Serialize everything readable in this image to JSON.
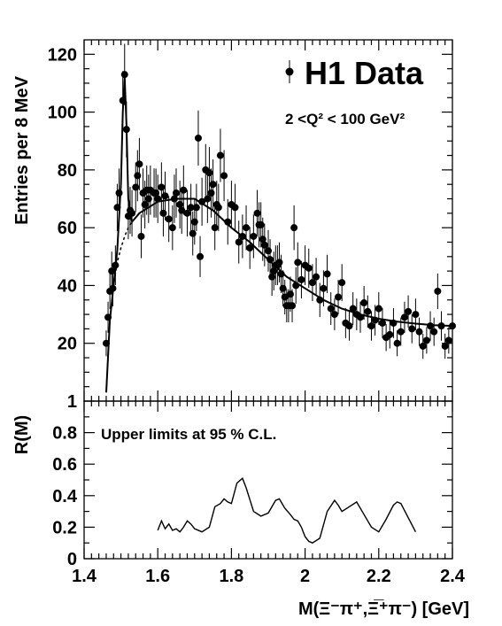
{
  "chart_data": [
    {
      "type": "scatter",
      "panel": "top",
      "legend": "H1 Data",
      "subtitle": "2 <Q² < 100 GeV²",
      "ylabel": "Entries per 8 MeV",
      "xlim": [
        1.4,
        2.4
      ],
      "ylim": [
        0,
        125
      ],
      "yticks": [
        20,
        40,
        60,
        80,
        100,
        120
      ],
      "legend_position": "top-right",
      "series": [
        {
          "points": [
            [
              1.46,
              20
            ],
            [
              1.465,
              29
            ],
            [
              1.47,
              38
            ],
            [
              1.475,
              45
            ],
            [
              1.478,
              39
            ],
            [
              1.485,
              47
            ],
            [
              1.49,
              67
            ],
            [
              1.495,
              72
            ],
            [
              1.505,
              104
            ],
            [
              1.51,
              113
            ],
            [
              1.515,
              94
            ],
            [
              1.52,
              64
            ],
            [
              1.525,
              66
            ],
            [
              1.53,
              65
            ],
            [
              1.54,
              74
            ],
            [
              1.545,
              78
            ],
            [
              1.55,
              82
            ],
            [
              1.555,
              57
            ],
            [
              1.56,
              72
            ],
            [
              1.565,
              68
            ],
            [
              1.57,
              73
            ],
            [
              1.575,
              70
            ],
            [
              1.58,
              73
            ],
            [
              1.59,
              72
            ],
            [
              1.595,
              72
            ],
            [
              1.6,
              70
            ],
            [
              1.61,
              74
            ],
            [
              1.615,
              65
            ],
            [
              1.62,
              71
            ],
            [
              1.63,
              63
            ],
            [
              1.64,
              60
            ],
            [
              1.645,
              70
            ],
            [
              1.65,
              72
            ],
            [
              1.66,
              68
            ],
            [
              1.665,
              66
            ],
            [
              1.67,
              73
            ],
            [
              1.68,
              65
            ],
            [
              1.69,
              67
            ],
            [
              1.695,
              58
            ],
            [
              1.7,
              62
            ],
            [
              1.705,
              67
            ],
            [
              1.71,
              91
            ],
            [
              1.715,
              50
            ],
            [
              1.72,
              69
            ],
            [
              1.73,
              80
            ],
            [
              1.735,
              70
            ],
            [
              1.74,
              79
            ],
            [
              1.745,
              72
            ],
            [
              1.75,
              75
            ],
            [
              1.755,
              60
            ],
            [
              1.76,
              68
            ],
            [
              1.765,
              67
            ],
            [
              1.77,
              85
            ],
            [
              1.78,
              78
            ],
            [
              1.79,
              62
            ],
            [
              1.8,
              68
            ],
            [
              1.81,
              67
            ],
            [
              1.82,
              55
            ],
            [
              1.83,
              57
            ],
            [
              1.84,
              60
            ],
            [
              1.85,
              53
            ],
            [
              1.86,
              57
            ],
            [
              1.87,
              65
            ],
            [
              1.875,
              61
            ],
            [
              1.88,
              61
            ],
            [
              1.885,
              56
            ],
            [
              1.89,
              54
            ],
            [
              1.9,
              52
            ],
            [
              1.905,
              49
            ],
            [
              1.91,
              43
            ],
            [
              1.915,
              45
            ],
            [
              1.92,
              47
            ],
            [
              1.925,
              47
            ],
            [
              1.93,
              48
            ],
            [
              1.935,
              44
            ],
            [
              1.94,
              39
            ],
            [
              1.945,
              36
            ],
            [
              1.95,
              33
            ],
            [
              1.955,
              33
            ],
            [
              1.96,
              37
            ],
            [
              1.965,
              33
            ],
            [
              1.97,
              60
            ],
            [
              1.975,
              40
            ],
            [
              1.98,
              48
            ],
            [
              1.99,
              42
            ],
            [
              2.0,
              47
            ],
            [
              2.01,
              46
            ],
            [
              2.02,
              41
            ],
            [
              2.03,
              43
            ],
            [
              2.04,
              35
            ],
            [
              2.05,
              39
            ],
            [
              2.06,
              44
            ],
            [
              2.07,
              32
            ],
            [
              2.08,
              30
            ],
            [
              2.09,
              36
            ],
            [
              2.1,
              41
            ],
            [
              2.11,
              27
            ],
            [
              2.12,
              26
            ],
            [
              2.13,
              32
            ],
            [
              2.14,
              30
            ],
            [
              2.15,
              29
            ],
            [
              2.16,
              34
            ],
            [
              2.17,
              31
            ],
            [
              2.18,
              26
            ],
            [
              2.19,
              28
            ],
            [
              2.2,
              32
            ],
            [
              2.21,
              27
            ],
            [
              2.22,
              22
            ],
            [
              2.23,
              23
            ],
            [
              2.24,
              27
            ],
            [
              2.25,
              20
            ],
            [
              2.26,
              24
            ],
            [
              2.27,
              29
            ],
            [
              2.28,
              31
            ],
            [
              2.29,
              25
            ],
            [
              2.3,
              30
            ],
            [
              2.31,
              24
            ],
            [
              2.32,
              19
            ],
            [
              2.33,
              21
            ],
            [
              2.34,
              26
            ],
            [
              2.35,
              24
            ],
            [
              2.36,
              38
            ],
            [
              2.37,
              26
            ],
            [
              2.38,
              19
            ],
            [
              2.39,
              21
            ],
            [
              2.4,
              26
            ]
          ]
        }
      ],
      "fit_curve": [
        [
          1.46,
          3
        ],
        [
          1.47,
          28
        ],
        [
          1.48,
          40
        ],
        [
          1.49,
          52
        ],
        [
          1.5,
          75
        ],
        [
          1.505,
          100
        ],
        [
          1.51,
          112
        ],
        [
          1.515,
          96
        ],
        [
          1.52,
          70
        ],
        [
          1.53,
          62
        ],
        [
          1.55,
          65
        ],
        [
          1.6,
          69
        ],
        [
          1.65,
          70
        ],
        [
          1.7,
          70
        ],
        [
          1.75,
          66
        ],
        [
          1.8,
          60
        ],
        [
          1.85,
          55
        ],
        [
          1.9,
          49
        ],
        [
          1.95,
          43
        ],
        [
          2.0,
          39
        ],
        [
          2.05,
          35
        ],
        [
          2.1,
          32
        ],
        [
          2.15,
          30
        ],
        [
          2.2,
          28.5
        ],
        [
          2.25,
          27.5
        ],
        [
          2.3,
          26.8
        ],
        [
          2.35,
          26.3
        ],
        [
          2.4,
          26
        ]
      ],
      "background_curve": [
        [
          1.46,
          3
        ],
        [
          1.47,
          28
        ],
        [
          1.48,
          40
        ],
        [
          1.49,
          48
        ],
        [
          1.5,
          53
        ],
        [
          1.51,
          57
        ],
        [
          1.52,
          60
        ],
        [
          1.53,
          62
        ]
      ]
    },
    {
      "type": "line",
      "panel": "bottom",
      "ylabel": "R(M)",
      "xlabel": "M(Ξ⁻π⁺,Ξ̅⁺π⁻) [GeV]",
      "annotation": "Upper limits at 95 % C.L.",
      "xlim": [
        1.4,
        2.4
      ],
      "ylim": [
        0,
        1
      ],
      "yticks": [
        0,
        0.2,
        0.4,
        0.6,
        0.8,
        1
      ],
      "ytick_labels": [
        "0",
        "0.2",
        "0.4",
        "0.6",
        "0.8",
        "1"
      ],
      "xticks": [
        1.4,
        1.6,
        1.8,
        2,
        2.2,
        2.4
      ],
      "xtick_labels": [
        "1.4",
        "1.6",
        "1.8",
        "2",
        "2.2",
        "2.4"
      ],
      "series": [
        {
          "points": [
            [
              1.6,
              0.18
            ],
            [
              1.61,
              0.24
            ],
            [
              1.62,
              0.19
            ],
            [
              1.63,
              0.22
            ],
            [
              1.64,
              0.18
            ],
            [
              1.65,
              0.19
            ],
            [
              1.66,
              0.17
            ],
            [
              1.67,
              0.2
            ],
            [
              1.68,
              0.24
            ],
            [
              1.69,
              0.22
            ],
            [
              1.7,
              0.19
            ],
            [
              1.72,
              0.17
            ],
            [
              1.74,
              0.2
            ],
            [
              1.755,
              0.33
            ],
            [
              1.77,
              0.35
            ],
            [
              1.78,
              0.38
            ],
            [
              1.79,
              0.36
            ],
            [
              1.8,
              0.35
            ],
            [
              1.815,
              0.48
            ],
            [
              1.83,
              0.51
            ],
            [
              1.84,
              0.45
            ],
            [
              1.86,
              0.3
            ],
            [
              1.88,
              0.27
            ],
            [
              1.9,
              0.29
            ],
            [
              1.92,
              0.37
            ],
            [
              1.93,
              0.38
            ],
            [
              1.945,
              0.32
            ],
            [
              1.96,
              0.28
            ],
            [
              1.97,
              0.25
            ],
            [
              1.98,
              0.24
            ],
            [
              1.99,
              0.2
            ],
            [
              2.0,
              0.14
            ],
            [
              2.01,
              0.11
            ],
            [
              2.02,
              0.1
            ],
            [
              2.04,
              0.13
            ],
            [
              2.06,
              0.3
            ],
            [
              2.08,
              0.37
            ],
            [
              2.09,
              0.34
            ],
            [
              2.1,
              0.3
            ],
            [
              2.12,
              0.33
            ],
            [
              2.14,
              0.36
            ],
            [
              2.16,
              0.28
            ],
            [
              2.18,
              0.2
            ],
            [
              2.2,
              0.17
            ],
            [
              2.22,
              0.25
            ],
            [
              2.24,
              0.34
            ],
            [
              2.25,
              0.36
            ],
            [
              2.26,
              0.35
            ],
            [
              2.28,
              0.26
            ],
            [
              2.3,
              0.17
            ]
          ]
        }
      ]
    }
  ]
}
